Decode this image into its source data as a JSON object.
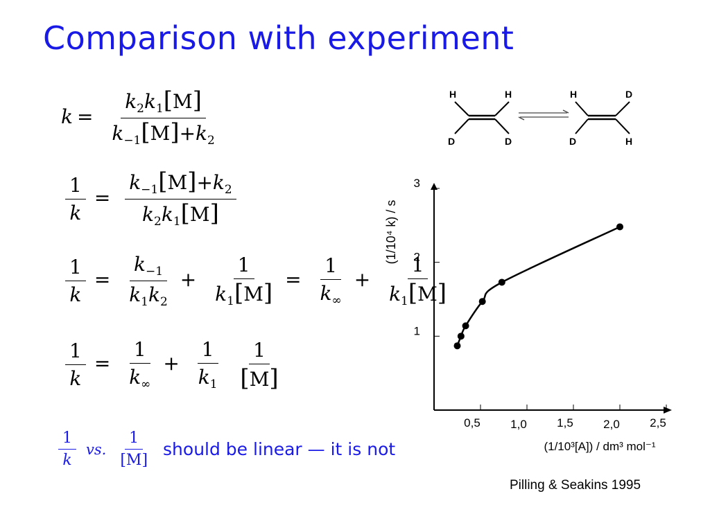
{
  "slide": {
    "title": "Comparison with experiment",
    "conclusion": "should be linear — it is not",
    "vs_label": "vs.",
    "citation": "Pilling & Seakins 1995"
  },
  "molecules": {
    "left": {
      "top_left": "H",
      "top_right": "H",
      "bottom_left": "D",
      "bottom_right": "D"
    },
    "right": {
      "top_left": "H",
      "top_right": "D",
      "bottom_left": "D",
      "bottom_right": "H"
    }
  },
  "chart_data": {
    "type": "scatter",
    "xlabel": "(1/10³[A]) / dm³ mol⁻¹",
    "ylabel": "(1/10⁴ k) / s",
    "x_ticks": [
      "0,5",
      "1,0",
      "1,5",
      "2,0",
      "2,5"
    ],
    "x_tick_values": [
      0.5,
      1.0,
      1.5,
      2.0,
      2.5
    ],
    "y_ticks": [
      "1",
      "2",
      "3"
    ],
    "y_tick_values": [
      1,
      2,
      3
    ],
    "xlim": [
      0,
      2.5
    ],
    "ylim": [
      0,
      3
    ],
    "grid": false,
    "points": [
      {
        "x": 0.25,
        "y": 0.87
      },
      {
        "x": 0.29,
        "y": 1.0
      },
      {
        "x": 0.34,
        "y": 1.14
      },
      {
        "x": 0.52,
        "y": 1.47
      },
      {
        "x": 0.73,
        "y": 1.73
      },
      {
        "x": 2.0,
        "y": 2.48
      }
    ],
    "curve": true
  }
}
